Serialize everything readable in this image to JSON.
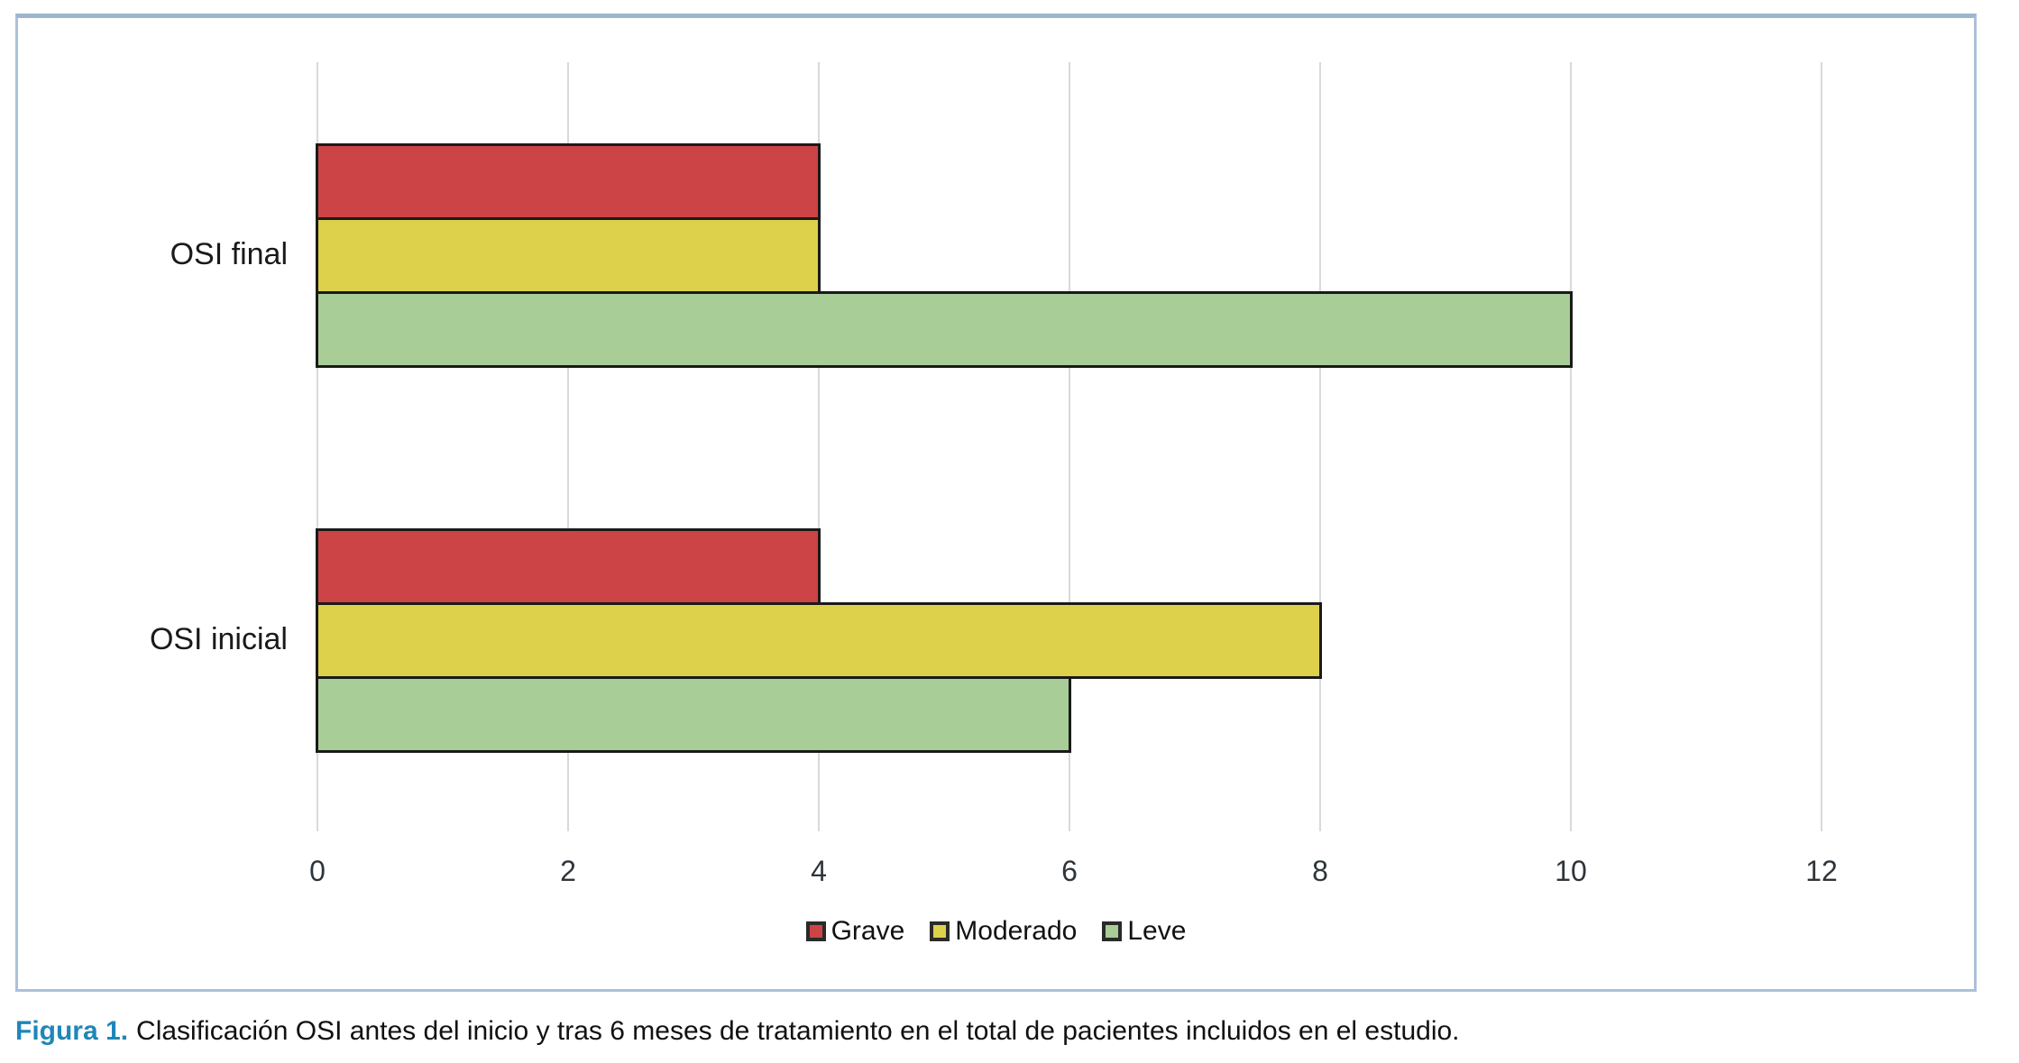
{
  "figure": {
    "caption_label": "Figura 1.",
    "caption_text": "Clasificación OSI antes del inicio y tras 6 meses de tratamiento en el total de pacientes incluidos en el estudio."
  },
  "chart_data": {
    "type": "bar",
    "orientation": "horizontal",
    "title": "",
    "xlabel": "",
    "ylabel": "",
    "categories": [
      "OSI final",
      "OSI inicial"
    ],
    "series": [
      {
        "name": "Grave",
        "color": "#cc4446",
        "values": [
          4,
          4
        ]
      },
      {
        "name": "Moderado",
        "color": "#ddd04b",
        "values": [
          4,
          8
        ]
      },
      {
        "name": "Leve",
        "color": "#a9cd96",
        "values": [
          10,
          6
        ]
      }
    ],
    "x_ticks": [
      0,
      2,
      4,
      6,
      8,
      10,
      12
    ],
    "xlim": [
      0,
      12
    ],
    "grid": true,
    "legend_position": "bottom",
    "colors": {
      "bar_border": "#1a1a1a",
      "gridline": "#d9d9d9",
      "panel_border": "#aac1da",
      "tick_text": "#2e353a",
      "caption_accent": "#1e87b8"
    }
  }
}
